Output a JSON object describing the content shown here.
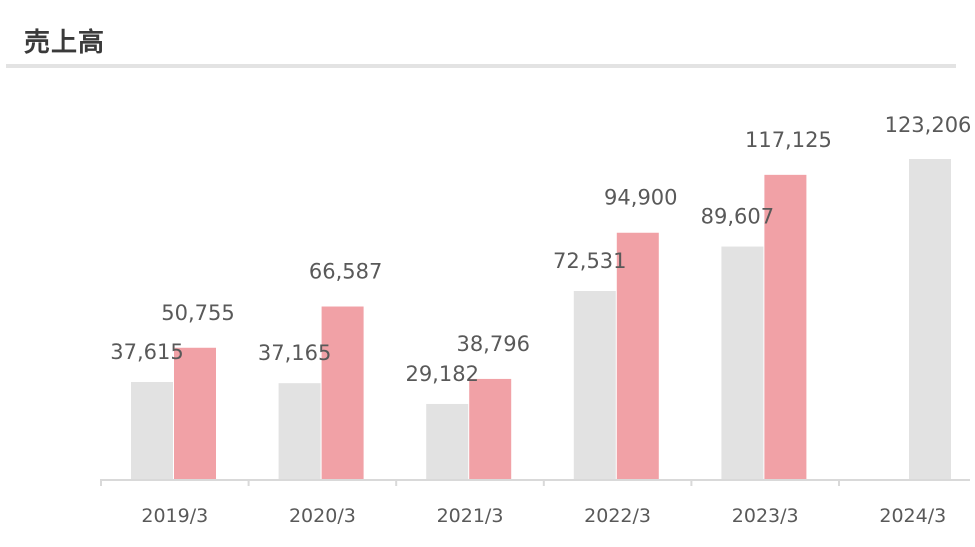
{
  "page": {
    "title": "売上高"
  },
  "chart_data": {
    "type": "bar",
    "categories": [
      "2019/3",
      "2020/3",
      "2021/3",
      "2022/3",
      "2023/3",
      "2024/3"
    ],
    "series": [
      {
        "values": [
          37615,
          37165,
          29182,
          72531,
          89607,
          123206
        ],
        "color": "#e2e2e2"
      },
      {
        "values": [
          50755,
          66587,
          38796,
          94900,
          117125,
          null
        ],
        "color": "#f1a1a6"
      }
    ],
    "value_labels": [
      [
        "37,615",
        "37,165",
        "29,182",
        "72,531",
        "89,607",
        "123,206"
      ],
      [
        "50,755",
        "66,587",
        "38,796",
        "94,900",
        "117,125",
        ""
      ]
    ],
    "ylim": [
      0,
      123206
    ],
    "grid": false,
    "legend": "none"
  }
}
